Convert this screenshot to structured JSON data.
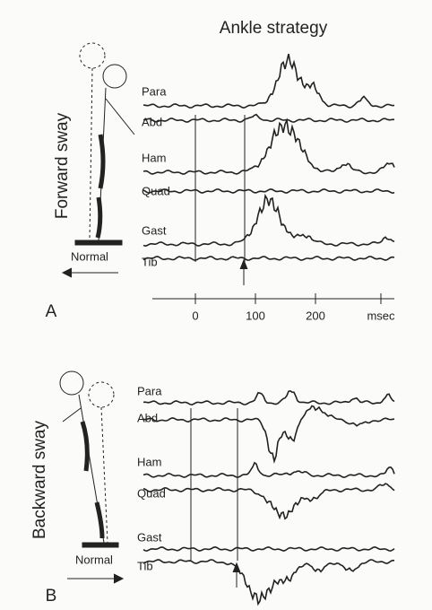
{
  "title": "Ankle strategy",
  "panels": [
    {
      "label": "A",
      "sway": "Forward sway",
      "stance": "Normal",
      "muscles": [
        "Para",
        "Abd",
        "Ham",
        "Quad",
        "Gast",
        "Tib"
      ],
      "time_axis": {
        "ticks": [
          "0",
          "100",
          "200"
        ],
        "unit": "msec"
      }
    },
    {
      "label": "B",
      "sway": "Backward sway",
      "stance": "Normal",
      "muscles": [
        "Para",
        "Abd",
        "Ham",
        "Quad",
        "Gast",
        "Tib"
      ]
    }
  ]
}
